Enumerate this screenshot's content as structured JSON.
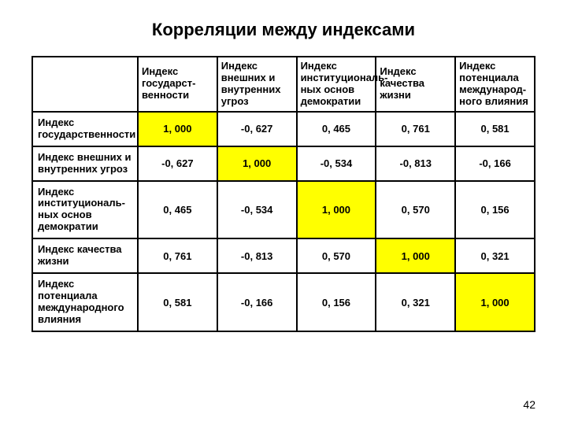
{
  "title": "Корреляции между индексами",
  "page_number": "42",
  "colors": {
    "diagonal_highlight": "#ffff00",
    "border": "#000000",
    "background": "#ffffff"
  },
  "table": {
    "columns": [
      "",
      "Индекс государст-венности",
      "Индекс внешних и внутренних угроз",
      "Индекс институциональ-ных основ демократии",
      "Индекс качества жизни",
      "Индекс потенциала международ-ного влияния"
    ],
    "rows": [
      {
        "label": "Индекс государственности",
        "cells": [
          "1, 000",
          "-0, 627",
          "0, 465",
          "0, 761",
          "0, 581"
        ]
      },
      {
        "label": "Индекс внешних и внутренних угроз",
        "cells": [
          "-0, 627",
          "1, 000",
          "-0, 534",
          "-0, 813",
          "-0, 166"
        ]
      },
      {
        "label": "Индекс институциональ-ных основ демократии",
        "cells": [
          "0, 465",
          "-0, 534",
          "1, 000",
          "0, 570",
          "0, 156"
        ]
      },
      {
        "label": "Индекс качества жизни",
        "cells": [
          "0, 761",
          "-0, 813",
          "0, 570",
          "1, 000",
          "0, 321"
        ]
      },
      {
        "label": "Индекс потенциала международного влияния",
        "cells": [
          "0, 581",
          "-0, 166",
          "0, 156",
          "0, 321",
          "1, 000"
        ]
      }
    ]
  }
}
